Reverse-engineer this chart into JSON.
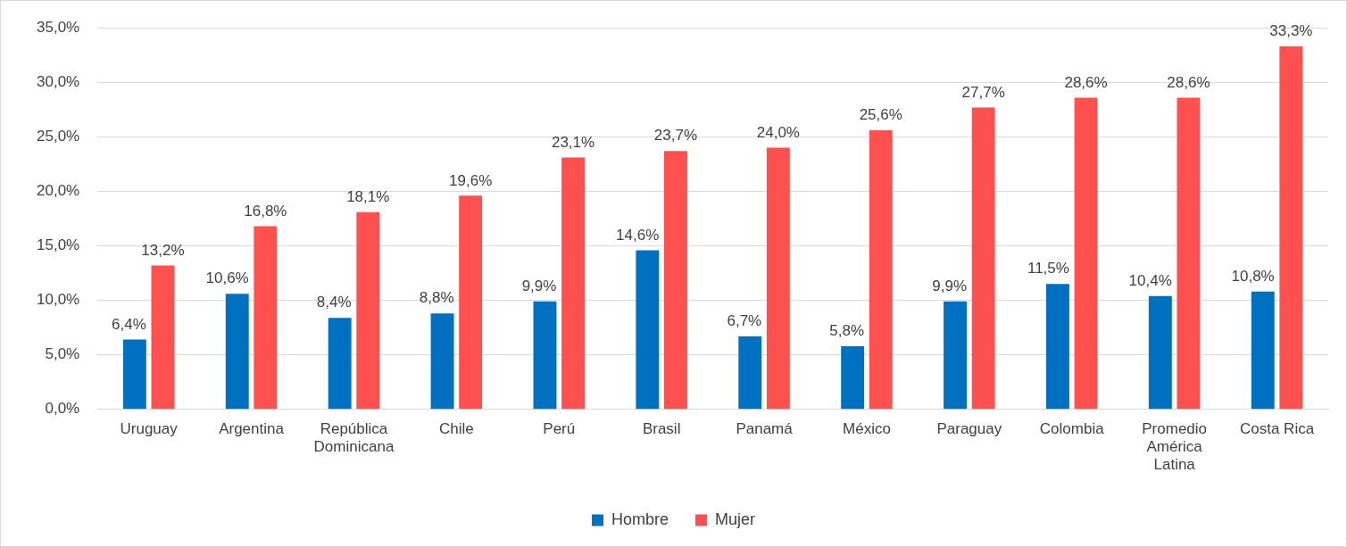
{
  "chart_data": {
    "type": "bar",
    "categories": [
      "Uruguay",
      "Argentina",
      "República Dominicana",
      "Chile",
      "Perú",
      "Brasil",
      "Panamá",
      "México",
      "Paraguay",
      "Colombia",
      "Promedio América Latina",
      "Costa Rica"
    ],
    "series": [
      {
        "name": "Hombre",
        "color": "#0070c0",
        "values": [
          6.4,
          10.6,
          8.4,
          8.8,
          9.9,
          14.6,
          6.7,
          5.8,
          9.9,
          11.5,
          10.4,
          10.8
        ],
        "value_labels": [
          "6,4%",
          "10,6%",
          "8,4%",
          "8,8%",
          "9,9%",
          "14,6%",
          "6,7%",
          "5,8%",
          "9,9%",
          "11,5%",
          "10,4%",
          "10,8%"
        ]
      },
      {
        "name": "Mujer",
        "color": "#ff5050",
        "values": [
          13.2,
          16.8,
          18.1,
          19.6,
          23.1,
          23.7,
          24.0,
          25.6,
          27.7,
          28.6,
          28.6,
          33.3
        ],
        "value_labels": [
          "13,2%",
          "16,8%",
          "18,1%",
          "19,6%",
          "23,1%",
          "23,7%",
          "24,0%",
          "25,6%",
          "27,7%",
          "28,6%",
          "28,6%",
          "33,3%"
        ]
      }
    ],
    "ylim": [
      0,
      35
    ],
    "yticks": [
      {
        "value": 0,
        "label": "0,0%"
      },
      {
        "value": 5,
        "label": "5,0%"
      },
      {
        "value": 10,
        "label": "10,0%"
      },
      {
        "value": 15,
        "label": "15,0%"
      },
      {
        "value": 20,
        "label": "20,0%"
      },
      {
        "value": 25,
        "label": "25,0%"
      },
      {
        "value": 30,
        "label": "30,0%"
      },
      {
        "value": 35,
        "label": "35,0%"
      }
    ],
    "grid": "y",
    "legend": "bottom"
  }
}
